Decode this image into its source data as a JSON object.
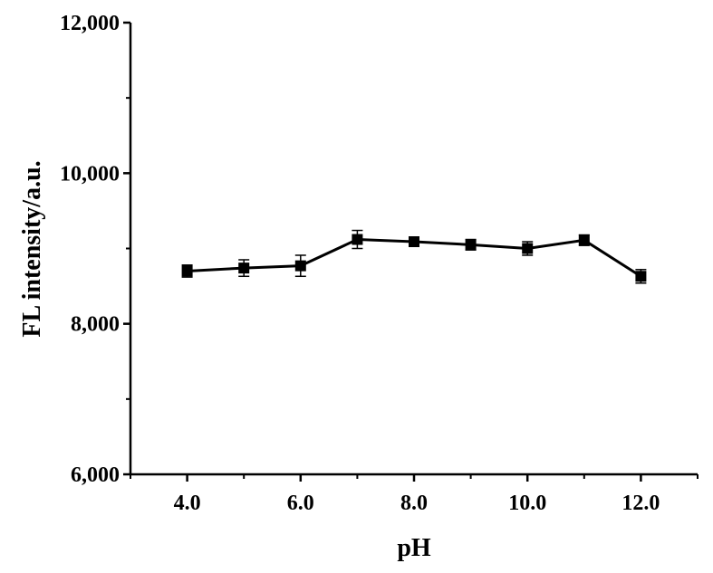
{
  "chart_data": {
    "type": "line",
    "title": "",
    "xlabel": "pH",
    "ylabel": "FL intensity/a.u.",
    "xlim": [
      3.0,
      13.0
    ],
    "ylim": [
      6000,
      12000
    ],
    "x_ticks": [
      4.0,
      6.0,
      8.0,
      10.0,
      12.0
    ],
    "x_tick_labels": [
      "4.0",
      "6.0",
      "8.0",
      "10.0",
      "12.0"
    ],
    "y_ticks": [
      6000,
      8000,
      10000,
      12000
    ],
    "y_tick_labels": [
      "6,000",
      "8,000",
      "10,000",
      "12,000"
    ],
    "grid": false,
    "legend": "none",
    "series": [
      {
        "marker": "square",
        "color": "#000000",
        "x": [
          4.0,
          5.0,
          6.0,
          7.0,
          8.0,
          9.0,
          10.0,
          11.0,
          12.0
        ],
        "y": [
          8700,
          8740,
          8770,
          9120,
          9090,
          9050,
          9000,
          9110,
          8630
        ],
        "error": [
          80,
          110,
          140,
          120,
          60,
          70,
          90,
          70,
          90
        ]
      }
    ]
  }
}
